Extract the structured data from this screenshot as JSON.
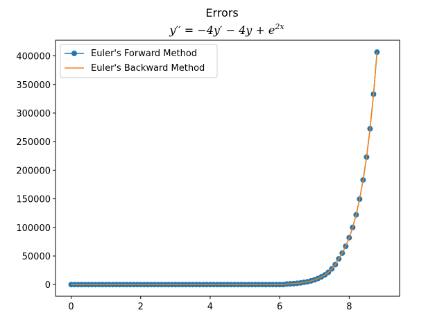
{
  "chart_data": {
    "type": "line",
    "title": "Errors",
    "subtitle": "y′′ = −4y′ − 4y + e",
    "subtitle_exp": "2x",
    "xlabel": "",
    "ylabel": "",
    "xlim": [
      -0.45,
      9.45
    ],
    "ylim": [
      -20350,
      427350
    ],
    "xticks": [
      0,
      2,
      4,
      6,
      8
    ],
    "xtick_labels": [
      "0",
      "2",
      "4",
      "6",
      "8"
    ],
    "yticks": [
      0,
      50000,
      100000,
      150000,
      200000,
      250000,
      300000,
      350000,
      400000
    ],
    "ytick_labels": [
      "0",
      "50000",
      "100000",
      "150000",
      "200000",
      "250000",
      "300000",
      "350000",
      "400000"
    ],
    "grid": false,
    "legend_position": "upper-left",
    "series": [
      {
        "name": "Euler's Forward Method",
        "color": "#1f77b4",
        "marker": "circle",
        "x_start": 0,
        "x_step": 0.1,
        "values": [
          0,
          0,
          0,
          0,
          0,
          0,
          0,
          0,
          0,
          0,
          0,
          0,
          0,
          0,
          0,
          0,
          0,
          0,
          0,
          0,
          0,
          0,
          0,
          0,
          0,
          0,
          0,
          0,
          0,
          0,
          0,
          0,
          0,
          0,
          0,
          0,
          0,
          0,
          0,
          0,
          0,
          0,
          0,
          0,
          0,
          0,
          0,
          0,
          0,
          0,
          0,
          0,
          0,
          0,
          0,
          0,
          0,
          0,
          0,
          0,
          0,
          0,
          1000,
          1300,
          1700,
          2300,
          3000,
          4000,
          5000,
          6500,
          8300,
          10600,
          13600,
          17000,
          21500,
          27500,
          35000,
          45000,
          55000,
          67000,
          82000,
          100000,
          122000,
          149500,
          183000,
          223000,
          272500,
          333000,
          406500
        ]
      },
      {
        "name": "Euler's Backward Method",
        "color": "#ff7f0e",
        "marker": "none",
        "x_start": 0,
        "x_step": 0.1,
        "values": [
          0,
          0,
          0,
          0,
          0,
          0,
          0,
          0,
          0,
          0,
          0,
          0,
          0,
          0,
          0,
          0,
          0,
          0,
          0,
          0,
          0,
          0,
          0,
          0,
          0,
          0,
          0,
          0,
          0,
          0,
          0,
          0,
          0,
          0,
          0,
          0,
          0,
          0,
          0,
          0,
          0,
          0,
          0,
          0,
          0,
          0,
          0,
          0,
          0,
          0,
          0,
          0,
          0,
          0,
          0,
          0,
          0,
          0,
          0,
          0,
          0,
          0,
          1000,
          1300,
          1700,
          2300,
          3000,
          4000,
          5000,
          6500,
          8300,
          10600,
          13600,
          17000,
          21500,
          27500,
          35000,
          45000,
          55000,
          67000,
          82000,
          100000,
          122000,
          149500,
          183000,
          223000,
          272500,
          333000,
          406500
        ]
      }
    ]
  }
}
